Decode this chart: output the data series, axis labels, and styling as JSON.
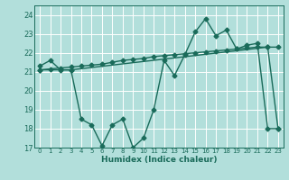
{
  "xlabel": "Humidex (Indice chaleur)",
  "xlim": [
    -0.5,
    23.5
  ],
  "ylim": [
    17,
    24.5
  ],
  "yticks": [
    17,
    18,
    19,
    20,
    21,
    22,
    23,
    24
  ],
  "xticks": [
    0,
    1,
    2,
    3,
    4,
    5,
    6,
    7,
    8,
    9,
    10,
    11,
    12,
    13,
    14,
    15,
    16,
    17,
    18,
    19,
    20,
    21,
    22,
    23
  ],
  "background_color": "#b2dfdb",
  "grid_color": "#ffffff",
  "line_color": "#1a6b5a",
  "series1_x": [
    0,
    1,
    2,
    3,
    4,
    5,
    6,
    7,
    8,
    9,
    10,
    11,
    12,
    13,
    14,
    15,
    16,
    17,
    18,
    19,
    20,
    21,
    22,
    23
  ],
  "series1_y": [
    21.3,
    21.6,
    21.1,
    21.1,
    18.5,
    18.2,
    17.1,
    18.2,
    18.5,
    17.0,
    17.5,
    19.0,
    21.6,
    20.8,
    21.9,
    23.1,
    23.8,
    22.9,
    23.2,
    22.2,
    22.4,
    22.5,
    18.0,
    18.0
  ],
  "series2_x": [
    0,
    1,
    2,
    3,
    4,
    5,
    6,
    7,
    8,
    9,
    10,
    11,
    12,
    13,
    14,
    15,
    16,
    17,
    18,
    19,
    20,
    21,
    22,
    23
  ],
  "series2_y": [
    21.1,
    21.15,
    21.2,
    21.25,
    21.3,
    21.35,
    21.4,
    21.5,
    21.6,
    21.65,
    21.7,
    21.8,
    21.85,
    21.9,
    21.95,
    22.0,
    22.05,
    22.1,
    22.15,
    22.2,
    22.25,
    22.3,
    22.3,
    22.3
  ],
  "series3_x": [
    0,
    3,
    22,
    23
  ],
  "series3_y": [
    21.1,
    21.1,
    22.3,
    18.0
  ],
  "markersize": 2.5,
  "linewidth": 1.0
}
